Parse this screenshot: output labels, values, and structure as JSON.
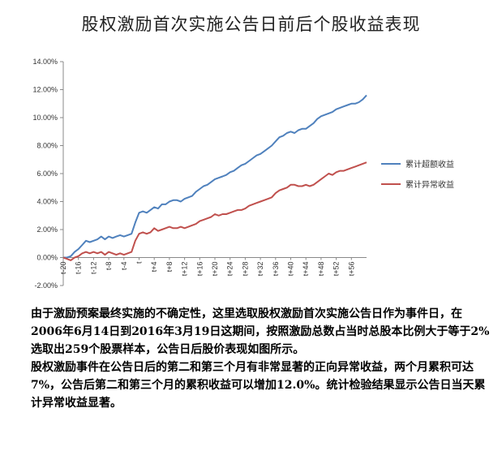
{
  "title": "股权激励首次实施公告日前后个股收益表现",
  "chart_data": {
    "type": "line",
    "title": "股权激励首次实施公告日前后个股收益表现",
    "xlabel": "",
    "ylabel": "",
    "ylim": [
      -0.02,
      0.14
    ],
    "y_tick_labels": [
      "14.00%",
      "12.00%",
      "10.00%",
      "8.00%",
      "6.00%",
      "4.00%",
      "2.00%",
      "0.00%",
      "-2.00%"
    ],
    "x_tick_labels": [
      "t-20",
      "t-16",
      "t-12",
      "t-8",
      "t-4",
      "t",
      "t+4",
      "t+8",
      "t+12",
      "t+16",
      "t+20",
      "t+24",
      "t+28",
      "t+32",
      "t+36",
      "t+40",
      "t+44",
      "t+48",
      "t+52",
      "t+56"
    ],
    "x_range": [
      -20,
      60
    ],
    "legend_position": "right",
    "series": [
      {
        "name": "累计超额收益",
        "color": "#4f81bd",
        "x": [
          -20,
          -19,
          -18,
          -17,
          -16,
          -15,
          -14,
          -13,
          -12,
          -11,
          -10,
          -9,
          -8,
          -7,
          -6,
          -5,
          -4,
          -3,
          -2,
          -1,
          0,
          1,
          2,
          3,
          4,
          5,
          6,
          7,
          8,
          9,
          10,
          11,
          12,
          13,
          14,
          15,
          16,
          17,
          18,
          19,
          20,
          21,
          22,
          23,
          24,
          25,
          26,
          27,
          28,
          29,
          30,
          31,
          32,
          33,
          34,
          35,
          36,
          37,
          38,
          39,
          40,
          41,
          42,
          43,
          44,
          45,
          46,
          47,
          48,
          49,
          50,
          51,
          52,
          53,
          54,
          55,
          56,
          57,
          58,
          59,
          60
        ],
        "values": [
          0.0,
          0.0,
          0.001,
          0.004,
          0.006,
          0.009,
          0.012,
          0.011,
          0.012,
          0.013,
          0.015,
          0.013,
          0.015,
          0.014,
          0.015,
          0.016,
          0.015,
          0.016,
          0.017,
          0.025,
          0.032,
          0.033,
          0.032,
          0.034,
          0.036,
          0.035,
          0.038,
          0.038,
          0.04,
          0.041,
          0.041,
          0.04,
          0.042,
          0.043,
          0.044,
          0.047,
          0.049,
          0.051,
          0.052,
          0.054,
          0.056,
          0.057,
          0.058,
          0.059,
          0.061,
          0.062,
          0.064,
          0.066,
          0.067,
          0.069,
          0.071,
          0.073,
          0.074,
          0.076,
          0.078,
          0.08,
          0.083,
          0.086,
          0.087,
          0.089,
          0.09,
          0.089,
          0.091,
          0.092,
          0.092,
          0.094,
          0.096,
          0.099,
          0.101,
          0.102,
          0.103,
          0.104,
          0.106,
          0.107,
          0.108,
          0.109,
          0.11,
          0.11,
          0.111,
          0.113,
          0.116
        ]
      },
      {
        "name": "累计异常收益",
        "color": "#c0504d",
        "x": [
          -20,
          -19,
          -18,
          -17,
          -16,
          -15,
          -14,
          -13,
          -12,
          -11,
          -10,
          -9,
          -8,
          -7,
          -6,
          -5,
          -4,
          -3,
          -2,
          -1,
          0,
          1,
          2,
          3,
          4,
          5,
          6,
          7,
          8,
          9,
          10,
          11,
          12,
          13,
          14,
          15,
          16,
          17,
          18,
          19,
          20,
          21,
          22,
          23,
          24,
          25,
          26,
          27,
          28,
          29,
          30,
          31,
          32,
          33,
          34,
          35,
          36,
          37,
          38,
          39,
          40,
          41,
          42,
          43,
          44,
          45,
          46,
          47,
          48,
          49,
          50,
          51,
          52,
          53,
          54,
          55,
          56,
          57,
          58,
          59,
          60
        ],
        "values": [
          0.0,
          -0.001,
          -0.002,
          0.0,
          0.001,
          0.003,
          0.004,
          0.003,
          0.004,
          0.003,
          0.004,
          0.002,
          0.004,
          0.003,
          0.002,
          0.003,
          0.002,
          0.003,
          0.004,
          0.012,
          0.017,
          0.018,
          0.017,
          0.018,
          0.021,
          0.019,
          0.02,
          0.021,
          0.022,
          0.021,
          0.021,
          0.022,
          0.021,
          0.022,
          0.023,
          0.024,
          0.026,
          0.027,
          0.028,
          0.029,
          0.031,
          0.03,
          0.031,
          0.031,
          0.032,
          0.033,
          0.034,
          0.034,
          0.035,
          0.037,
          0.038,
          0.039,
          0.04,
          0.041,
          0.042,
          0.043,
          0.046,
          0.048,
          0.049,
          0.05,
          0.052,
          0.052,
          0.051,
          0.051,
          0.052,
          0.051,
          0.052,
          0.054,
          0.056,
          0.058,
          0.06,
          0.059,
          0.061,
          0.062,
          0.062,
          0.063,
          0.064,
          0.065,
          0.066,
          0.067,
          0.068
        ]
      }
    ]
  },
  "caption": {
    "paragraph_1": "由于激励预案最终实施的不确定性，这里选取股权激励首次实施公告日作为事件日，在2006年6月14日到2016年3月19日这期间，按照激励总数占当时总股本比例大于等于2%选取出259个股票样本，公告日后股价表现如图所示。",
    "paragraph_2": "股权激励事件在公告日后的第二和第三个月有非常显著的正向异常收益，两个月累积可达7%，公告后第二和第三个月的累积收益可以增加12.0%。统计检验结果显示公告日当天累计异常收益显著。"
  }
}
